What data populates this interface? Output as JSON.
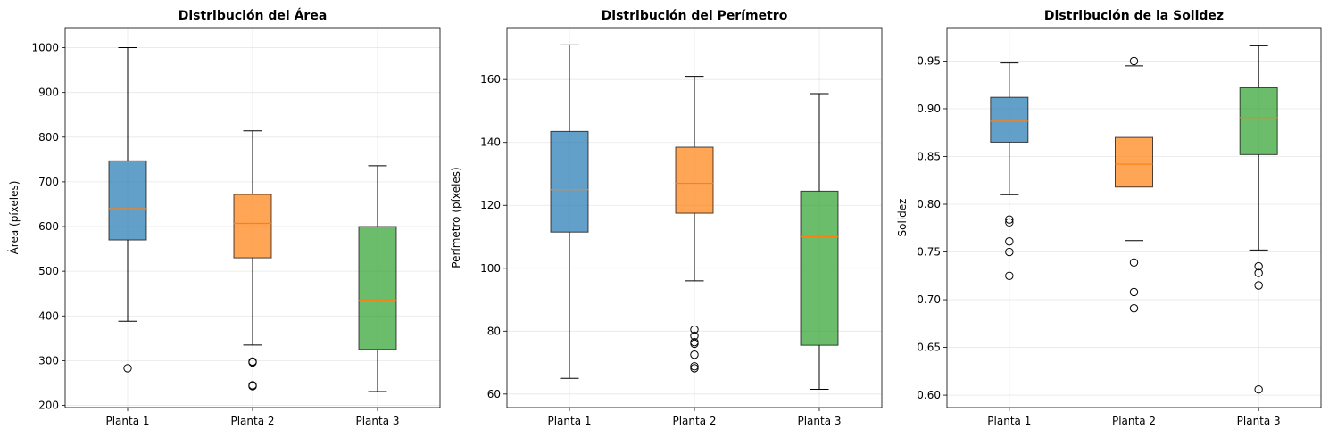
{
  "chart_data": [
    {
      "type": "box",
      "title": "Distribución del Área",
      "xlabel": "",
      "ylabel": "Área (píxeles)",
      "ylim": [
        195,
        1045
      ],
      "yticks": [
        200,
        300,
        400,
        500,
        600,
        700,
        800,
        900,
        1000
      ],
      "grid": true,
      "categories": [
        "Planta 1",
        "Planta 2",
        "Planta 3"
      ],
      "boxes": [
        {
          "category": "Planta 1",
          "whisker_low": 388,
          "q1": 570,
          "median": 640,
          "q3": 747,
          "whisker_high": 1000,
          "fliers": [
            283
          ],
          "color": "#1f77b4"
        },
        {
          "category": "Planta 2",
          "whisker_low": 335,
          "q1": 530,
          "median": 607,
          "q3": 672,
          "whisker_high": 814,
          "fliers": [
            298,
            296,
            245,
            243
          ],
          "color": "#ff7f0e"
        },
        {
          "category": "Planta 3",
          "whisker_low": 231,
          "q1": 325,
          "median": 435,
          "q3": 600,
          "whisker_high": 736,
          "fliers": [],
          "color": "#2ca02c"
        }
      ]
    },
    {
      "type": "box",
      "title": "Distribución del Perímetro",
      "xlabel": "",
      "ylabel": "Perímetro (píxeles)",
      "ylim": [
        55.7,
        176.5
      ],
      "yticks": [
        60,
        80,
        100,
        120,
        140,
        160
      ],
      "grid": true,
      "categories": [
        "Planta 1",
        "Planta 2",
        "Planta 3"
      ],
      "boxes": [
        {
          "category": "Planta 1",
          "whisker_low": 65,
          "q1": 111.5,
          "median": 125,
          "q3": 143.5,
          "whisker_high": 171,
          "fliers": [],
          "color": "#1f77b4"
        },
        {
          "category": "Planta 2",
          "whisker_low": 96,
          "q1": 117.5,
          "median": 127,
          "q3": 138.5,
          "whisker_high": 161,
          "fliers": [
            80.5,
            78.5,
            76.5,
            76,
            72.5,
            68.8,
            68.2
          ],
          "color": "#ff7f0e"
        },
        {
          "category": "Planta 3",
          "whisker_low": 61.5,
          "q1": 75.5,
          "median": 110,
          "q3": 124.5,
          "whisker_high": 155.5,
          "fliers": [],
          "color": "#2ca02c"
        }
      ]
    },
    {
      "type": "box",
      "title": "Distribución de la Solidez",
      "xlabel": "",
      "ylabel": "Solidez",
      "ylim": [
        0.587,
        0.985
      ],
      "yticks": [
        0.6,
        0.65,
        0.7,
        0.75,
        0.8,
        0.85,
        0.9,
        0.95
      ],
      "ytick_labels": [
        "0.60",
        "0.65",
        "0.70",
        "0.75",
        "0.80",
        "0.85",
        "0.90",
        "0.95"
      ],
      "grid": true,
      "categories": [
        "Planta 1",
        "Planta 2",
        "Planta 3"
      ],
      "boxes": [
        {
          "category": "Planta 1",
          "whisker_low": 0.81,
          "q1": 0.865,
          "median": 0.887,
          "q3": 0.912,
          "whisker_high": 0.948,
          "fliers": [
            0.784,
            0.781,
            0.761,
            0.75,
            0.725
          ],
          "color": "#1f77b4"
        },
        {
          "category": "Planta 2",
          "whisker_low": 0.762,
          "q1": 0.818,
          "median": 0.842,
          "q3": 0.87,
          "whisker_high": 0.945,
          "fliers": [
            0.95,
            0.739,
            0.708,
            0.691
          ],
          "color": "#ff7f0e"
        },
        {
          "category": "Planta 3",
          "whisker_low": 0.752,
          "q1": 0.852,
          "median": 0.891,
          "q3": 0.922,
          "whisker_high": 0.966,
          "fliers": [
            0.735,
            0.728,
            0.715,
            0.606
          ],
          "color": "#2ca02c"
        }
      ]
    }
  ],
  "median_color": "#ff7f0e",
  "box_alpha": 0.7
}
